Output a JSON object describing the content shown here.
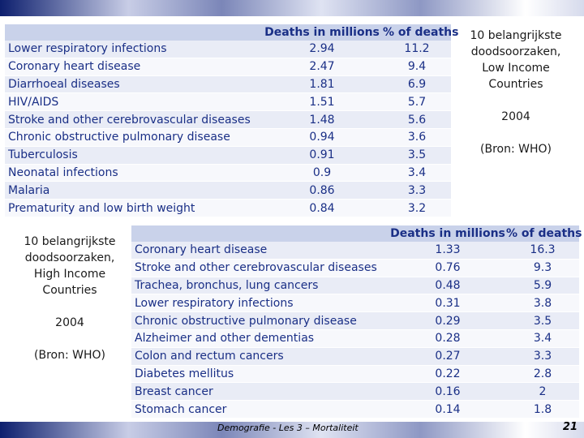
{
  "table_low": {
    "headers": [
      "",
      "Deaths in millions",
      "% of deaths"
    ],
    "rows": [
      {
        "cause": "Lower respiratory infections",
        "deaths": "2.94",
        "pct": "11.2"
      },
      {
        "cause": "Coronary heart disease",
        "deaths": "2.47",
        "pct": "9.4"
      },
      {
        "cause": "Diarrhoeal diseases",
        "deaths": "1.81",
        "pct": "6.9"
      },
      {
        "cause": "HIV/AIDS",
        "deaths": "1.51",
        "pct": "5.7"
      },
      {
        "cause": "Stroke and other cerebrovascular diseases",
        "deaths": "1.48",
        "pct": "5.6"
      },
      {
        "cause": "Chronic obstructive pulmonary disease",
        "deaths": "0.94",
        "pct": "3.6"
      },
      {
        "cause": "Tuberculosis",
        "deaths": "0.91",
        "pct": "3.5"
      },
      {
        "cause": "Neonatal infections",
        "deaths": "0.9",
        "pct": "3.4"
      },
      {
        "cause": "Malaria",
        "deaths": "0.86",
        "pct": "3.3"
      },
      {
        "cause": "Prematurity and low birth weight",
        "deaths": "0.84",
        "pct": "3.2"
      }
    ]
  },
  "table_high": {
    "headers": [
      "",
      "Deaths in millions",
      "% of deaths"
    ],
    "rows": [
      {
        "cause": "Coronary heart disease",
        "deaths": "1.33",
        "pct": "16.3"
      },
      {
        "cause": "Stroke and other cerebrovascular diseases",
        "deaths": "0.76",
        "pct": "9.3"
      },
      {
        "cause": "Trachea, bronchus, lung cancers",
        "deaths": "0.48",
        "pct": "5.9"
      },
      {
        "cause": "Lower respiratory infections",
        "deaths": "0.31",
        "pct": "3.8"
      },
      {
        "cause": "Chronic obstructive pulmonary disease",
        "deaths": "0.29",
        "pct": "3.5"
      },
      {
        "cause": "Alzheimer and other dementias",
        "deaths": "0.28",
        "pct": "3.4"
      },
      {
        "cause": "Colon and rectum cancers",
        "deaths": "0.27",
        "pct": "3.3"
      },
      {
        "cause": "Diabetes mellitus",
        "deaths": "0.22",
        "pct": "2.8"
      },
      {
        "cause": "Breast cancer",
        "deaths": "0.16",
        "pct": "2"
      },
      {
        "cause": "Stomach cancer",
        "deaths": "0.14",
        "pct": "1.8"
      }
    ]
  },
  "side_low": {
    "lines": [
      "10 belangrijkste",
      "doodsoorzaken,",
      "Low Income",
      "Countries"
    ],
    "year": "2004",
    "source": "(Bron: WHO)"
  },
  "side_high": {
    "lines": [
      "10 belangrijkste",
      "doodsoorzaken,",
      "High Income",
      "Countries"
    ],
    "year": "2004",
    "source": "(Bron: WHO)"
  },
  "footer": {
    "text": "Demografie - Les 3 – Mortaliteit",
    "page": "21"
  },
  "colors": {
    "header_bg": "#c9d2ea",
    "row_odd": "#e9ecf6",
    "row_even": "#f7f8fc",
    "table_text": "#1a2f86"
  }
}
